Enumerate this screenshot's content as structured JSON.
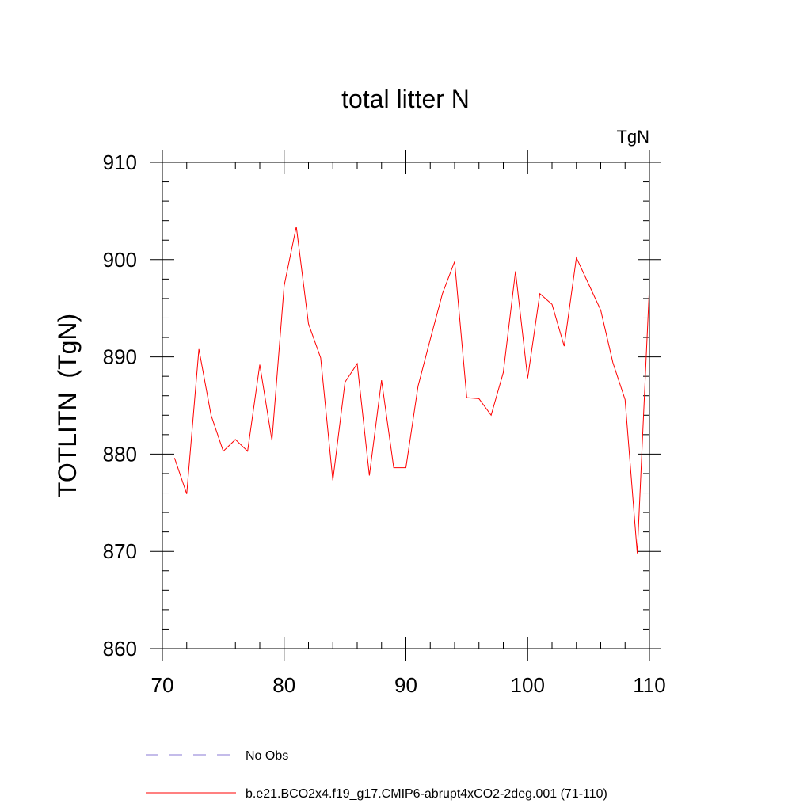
{
  "chart_data": {
    "type": "line",
    "title": "total litter N",
    "units": "TgN",
    "ylabel": "TOTLITN  (TgN)",
    "xlabel": "",
    "xlim": [
      70,
      110
    ],
    "ylim": [
      860,
      910
    ],
    "xticks": [
      70,
      80,
      90,
      100,
      110
    ],
    "yticks": [
      860,
      870,
      880,
      890,
      900,
      910
    ],
    "x_minor_step": 2,
    "y_minor_step": 2,
    "grid": false,
    "legend_position": "bottom",
    "series": [
      {
        "name": "b.e21.BCO2x4.f19_g17.CMIP6-abrupt4xCO2-2deg.001 (71-110)",
        "color": "#ff0000",
        "style": "solid",
        "x": [
          71,
          72,
          73,
          74,
          75,
          76,
          77,
          78,
          79,
          80,
          81,
          82,
          83,
          84,
          85,
          86,
          87,
          88,
          89,
          90,
          91,
          92,
          93,
          94,
          95,
          96,
          97,
          98,
          99,
          100,
          101,
          102,
          103,
          104,
          105,
          106,
          107,
          108,
          109,
          110
        ],
        "values": [
          879.6,
          875.9,
          890.8,
          884.0,
          880.3,
          881.5,
          880.3,
          889.2,
          881.4,
          897.3,
          903.4,
          893.4,
          889.9,
          877.3,
          887.4,
          889.3,
          877.8,
          887.6,
          878.6,
          878.6,
          887.0,
          891.8,
          896.5,
          899.8,
          885.8,
          885.7,
          884.0,
          888.4,
          898.8,
          887.8,
          896.5,
          895.4,
          891.1,
          900.2,
          897.5,
          894.8,
          889.4,
          885.6,
          869.8,
          897.3
        ]
      }
    ],
    "legend": [
      {
        "label": "No Obs",
        "color": "#8a7ad6",
        "style": "dashed"
      },
      {
        "label": "b.e21.BCO2x4.f19_g17.CMIP6-abrupt4xCO2-2deg.001 (71-110)",
        "color": "#ff0000",
        "style": "solid"
      }
    ]
  }
}
